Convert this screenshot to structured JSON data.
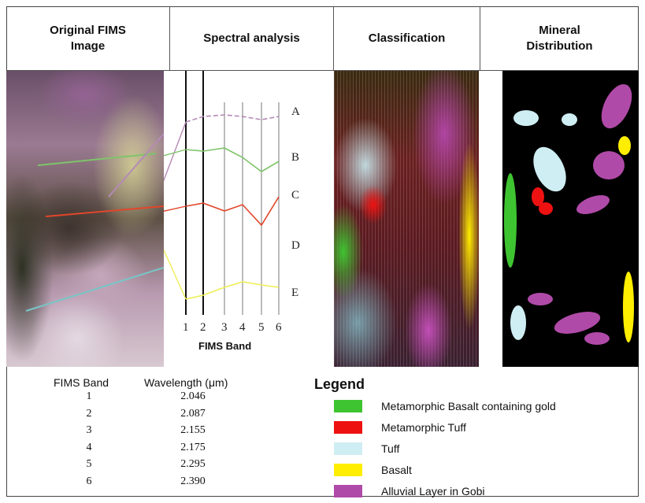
{
  "headers": [
    {
      "label": "Original FIMS\nImage"
    },
    {
      "label": "Spectral    analysis"
    },
    {
      "label": "Classification"
    },
    {
      "label": "Mineral\nDistribution"
    }
  ],
  "spectral": {
    "curves": [
      {
        "label": "A",
        "color": "#b48ab4"
      },
      {
        "label": "B",
        "color": "#7fc46a"
      },
      {
        "label": "C",
        "color": "#e2462a"
      },
      {
        "label": "D",
        "color": "#bbbbbb"
      },
      {
        "label": "E",
        "color": "#eeee55"
      }
    ],
    "bands": [
      "1",
      "2",
      "3",
      "4",
      "5",
      "6"
    ],
    "xlabel": "FIMS Band"
  },
  "table": {
    "col1_header": "FIMS Band",
    "col2_header": "Wavelength (μm)",
    "rows": [
      {
        "band": "1",
        "wavelength": "2.046"
      },
      {
        "band": "2",
        "wavelength": "2.087"
      },
      {
        "band": "3",
        "wavelength": "2.155"
      },
      {
        "band": "4",
        "wavelength": "2.175"
      },
      {
        "band": "5",
        "wavelength": "2.295"
      },
      {
        "band": "6",
        "wavelength": "2.390"
      }
    ]
  },
  "legend": {
    "title": "Legend",
    "items": [
      {
        "label": "Metamorphic  Basalt containing gold",
        "color": "#3fc431"
      },
      {
        "label": "Metamorphic Tuff",
        "color": "#ee1111"
      },
      {
        "label": "Tuff",
        "color": "#cfeef3"
      },
      {
        "label": "Basalt",
        "color": "#ffee00"
      },
      {
        "label": "Alluvial  Layer in Gobi",
        "color": "#b04aa8"
      }
    ]
  }
}
